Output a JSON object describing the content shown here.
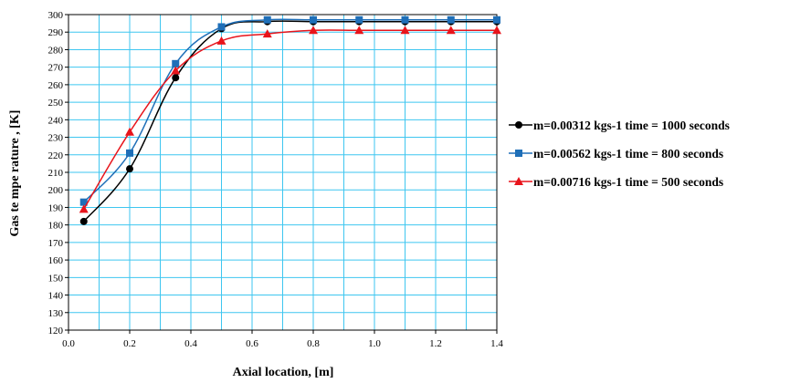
{
  "chart_data": {
    "type": "line",
    "title": "",
    "xlabel": "Axial location, [m]",
    "ylabel": "Gas te mpe rature , [K]",
    "xlim": [
      0.0,
      1.4
    ],
    "ylim": [
      120,
      300
    ],
    "xticks": [
      "0.0",
      "0.2",
      "0.4",
      "0.6",
      "0.8",
      "1.0",
      "1.2",
      "1.4"
    ],
    "yticks": [
      "120",
      "130",
      "140",
      "150",
      "160",
      "170",
      "180",
      "190",
      "200",
      "210",
      "220",
      "230",
      "240",
      "250",
      "260",
      "270",
      "280",
      "290",
      "300"
    ],
    "grid": true,
    "legend_position": "right",
    "x": [
      0.05,
      0.2,
      0.35,
      0.5,
      0.65,
      0.8,
      0.95,
      1.1,
      1.25,
      1.4
    ],
    "series": [
      {
        "name": "m=0.00312 kgs-1 time = 1000 seconds",
        "color": "#000000",
        "marker": "circle",
        "values": [
          182,
          212,
          264,
          292,
          296,
          296,
          296,
          296,
          296,
          296
        ]
      },
      {
        "name": "m=0.00562 kgs-1 time = 800 seconds",
        "color": "#1f6fb8",
        "marker": "square",
        "values": [
          193,
          221,
          272,
          293,
          297,
          297,
          297,
          297,
          297,
          297
        ]
      },
      {
        "name": "m=0.00716 kgs-1 time = 500 seconds",
        "color": "#e8141b",
        "marker": "triangle",
        "values": [
          189,
          233,
          268,
          285,
          289,
          291,
          291,
          291,
          291,
          291
        ]
      }
    ]
  }
}
